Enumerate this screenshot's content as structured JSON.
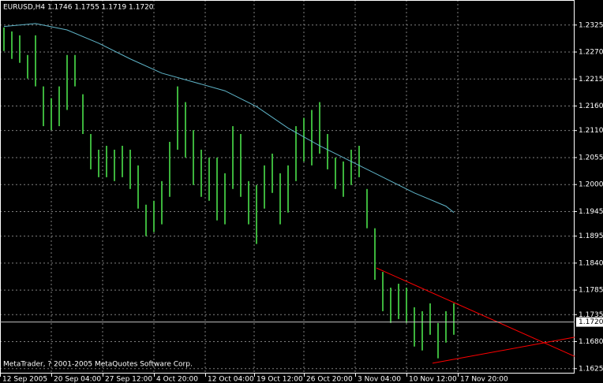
{
  "chart_data": {
    "type": "ohlc",
    "title": "EURUSD,H4  1.1746 1.1755 1.1719 1.1720",
    "footer": "MetaTrader, ? 2001-2005 MetaQuotes Software Corp.",
    "color": "#3cb43c",
    "high": [
      1.232,
      1.2312,
      1.2304,
      1.2264,
      1.2304,
      1.22,
      1.2176,
      1.22,
      1.2264,
      1.2264,
      1.2184,
      1.2103,
      1.2071,
      1.2079,
      1.2071,
      1.2079,
      1.2071,
      1.2039,
      1.1959,
      1.1967,
      1.2007,
      1.2087,
      1.22,
      1.2168,
      1.2111,
      1.2071,
      1.2055,
      1.2055,
      1.2023,
      1.2119,
      1.2103,
      1.2007,
      1.1999,
      1.2039,
      1.2063,
      1.2023,
      1.2039,
      1.2119,
      1.2136,
      1.2152,
      1.2168,
      1.2103,
      1.2055,
      1.2047,
      1.2071,
      1.2079,
      1.1991,
      1.1911,
      1.1822,
      1.179,
      1.1798,
      1.179,
      1.175,
      1.1742,
      1.1758,
      1.1718,
      1.1742,
      1.1758
    ],
    "low": [
      1.2272,
      1.2256,
      1.2248,
      1.2216,
      1.22,
      1.2119,
      1.2111,
      1.2119,
      1.2152,
      1.22,
      1.2103,
      1.2031,
      1.2015,
      1.2015,
      1.2007,
      1.2015,
      1.1991,
      1.1951,
      1.1895,
      1.1903,
      1.1919,
      1.1975,
      1.2071,
      1.2055,
      1.1999,
      1.1975,
      1.1967,
      1.1927,
      1.1919,
      1.1991,
      1.1975,
      1.1919,
      1.1879,
      1.1951,
      1.1983,
      1.1919,
      1.1943,
      1.2007,
      1.2047,
      1.2039,
      1.2063,
      1.2031,
      1.1991,
      1.1975,
      1.1999,
      1.2015,
      1.1911,
      1.1806,
      1.1742,
      1.1718,
      1.1726,
      1.1718,
      1.167,
      1.1662,
      1.1694,
      1.1646,
      1.1678,
      1.1694
    ],
    "moving_average": {
      "color": "#5fb4c8",
      "x": [
        0,
        4,
        8,
        12,
        16,
        20,
        24,
        28,
        32,
        36,
        40,
        44,
        48,
        52,
        56,
        57
      ],
      "values": [
        1.2322,
        1.2328,
        1.2315,
        1.2288,
        1.2256,
        1.2227,
        1.2209,
        1.2191,
        1.2159,
        1.2115,
        1.2079,
        1.2047,
        1.2015,
        1.1983,
        1.1956,
        1.1943
      ]
    },
    "trendlines": [
      {
        "color": "#ff0000",
        "x": [
          47.2,
          72.3
        ],
        "values": [
          1.183,
          1.165
        ]
      },
      {
        "color": "#ff0000",
        "x": [
          54.3,
          72.3
        ],
        "values": [
          1.1636,
          1.1689
        ]
      }
    ],
    "price_line": {
      "value": 1.172,
      "label": "1.1720"
    },
    "xlim": [
      -0.5,
      72.3
    ],
    "xticks": [
      {
        "value": -0.5,
        "label": "12 Sep 2005"
      },
      {
        "value": 6,
        "label": "20 Sep 04:00"
      },
      {
        "value": 12.5,
        "label": "27 Sep 12:00"
      },
      {
        "value": 19,
        "label": "4 Oct 20:00"
      },
      {
        "value": 25.5,
        "label": "12 Oct 04:00"
      },
      {
        "value": 31.7,
        "label": "19 Oct 12:00"
      },
      {
        "value": 38,
        "label": "26 Oct 20:00"
      },
      {
        "value": 44.5,
        "label": "3 Nov 04:00"
      },
      {
        "value": 51,
        "label": "10 Nov 12:00"
      },
      {
        "value": 57.5,
        "label": "17 Nov 20:00"
      }
    ],
    "ylim": [
      1.1615,
      1.2376
    ],
    "yticks": [
      1.2325,
      {
        "value": 1.227,
        "label": "1.2270"
      },
      1.2215,
      {
        "value": 1.216,
        "label": "1.2160"
      },
      {
        "value": 1.211,
        "label": "1.2110"
      },
      1.2055,
      {
        "value": 1.2,
        "label": "1.2000"
      },
      1.1945,
      1.1895,
      {
        "value": 1.184,
        "label": "1.1840"
      },
      1.1785,
      1.1735,
      {
        "value": 1.168,
        "label": "1.1680"
      },
      1.1625
    ],
    "grid": true
  }
}
